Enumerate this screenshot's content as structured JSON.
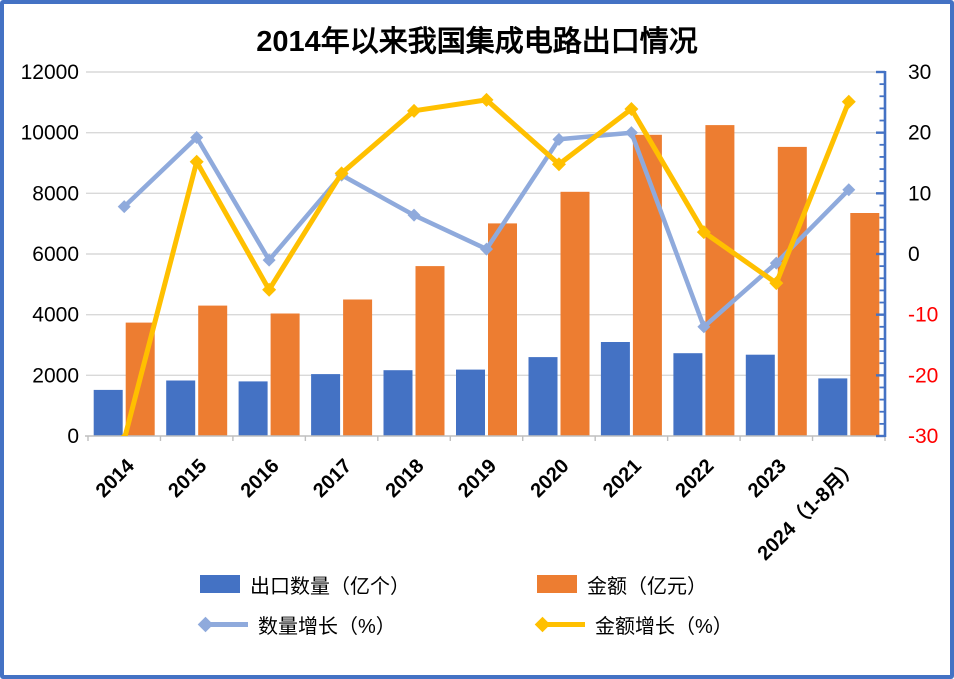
{
  "title": "2014年以来我国集成电路出口情况",
  "colors": {
    "bar_quantity": "#4472C4",
    "bar_amount": "#ED7D31",
    "line_quantity_growth": "#8FAADC",
    "line_amount_growth": "#FFC000",
    "gridline": "#D9D9D9",
    "bottom_axis": "#BFBFBF",
    "right_axis": "#4472C4",
    "negative_tick_label": "#FF0000",
    "tick_label": "#000000",
    "frame_border": "#4472C4"
  },
  "chart_data": {
    "type": "combo-bar-line",
    "title": "2014年以来我国集成电路出口情况",
    "categories": [
      "2014",
      "2015",
      "2016",
      "2017",
      "2018",
      "2019",
      "2020",
      "2021",
      "2022",
      "2023",
      "2024（1-8月）"
    ],
    "series": [
      {
        "name": "出口数量（亿个）",
        "type": "bar",
        "axis": "left",
        "values": [
          1520,
          1830,
          1800,
          2040,
          2170,
          2190,
          2600,
          3100,
          2730,
          2680,
          1900
        ]
      },
      {
        "name": "金额（亿元）",
        "type": "bar",
        "axis": "left",
        "values": [
          3740,
          4300,
          4040,
          4500,
          5600,
          7010,
          8050,
          9930,
          10250,
          9530,
          7350
        ]
      },
      {
        "name": "数量增长（%）",
        "type": "line",
        "axis": "right",
        "values": [
          7.8,
          19.2,
          -1.0,
          13.0,
          6.4,
          0.8,
          18.9,
          20.0,
          -12.0,
          -1.5,
          10.6
        ]
      },
      {
        "name": "金额增长（%）",
        "type": "line",
        "axis": "right",
        "values": [
          -30.6,
          15.2,
          -5.9,
          13.3,
          23.6,
          25.4,
          14.8,
          23.9,
          3.6,
          -4.8,
          25.1
        ]
      }
    ],
    "left_axis": {
      "min": 0,
      "max": 12000,
      "step": 2000,
      "ticks": [
        "0",
        "2000",
        "4000",
        "6000",
        "8000",
        "10000",
        "12000"
      ]
    },
    "right_axis": {
      "min": -30,
      "max": 30,
      "step": 10,
      "minor_step": 2,
      "ticks": [
        "-30",
        "-20",
        "-10",
        "0",
        "10",
        "20",
        "30"
      ]
    },
    "grid": true,
    "legend_position": "bottom",
    "marker": "diamond"
  }
}
